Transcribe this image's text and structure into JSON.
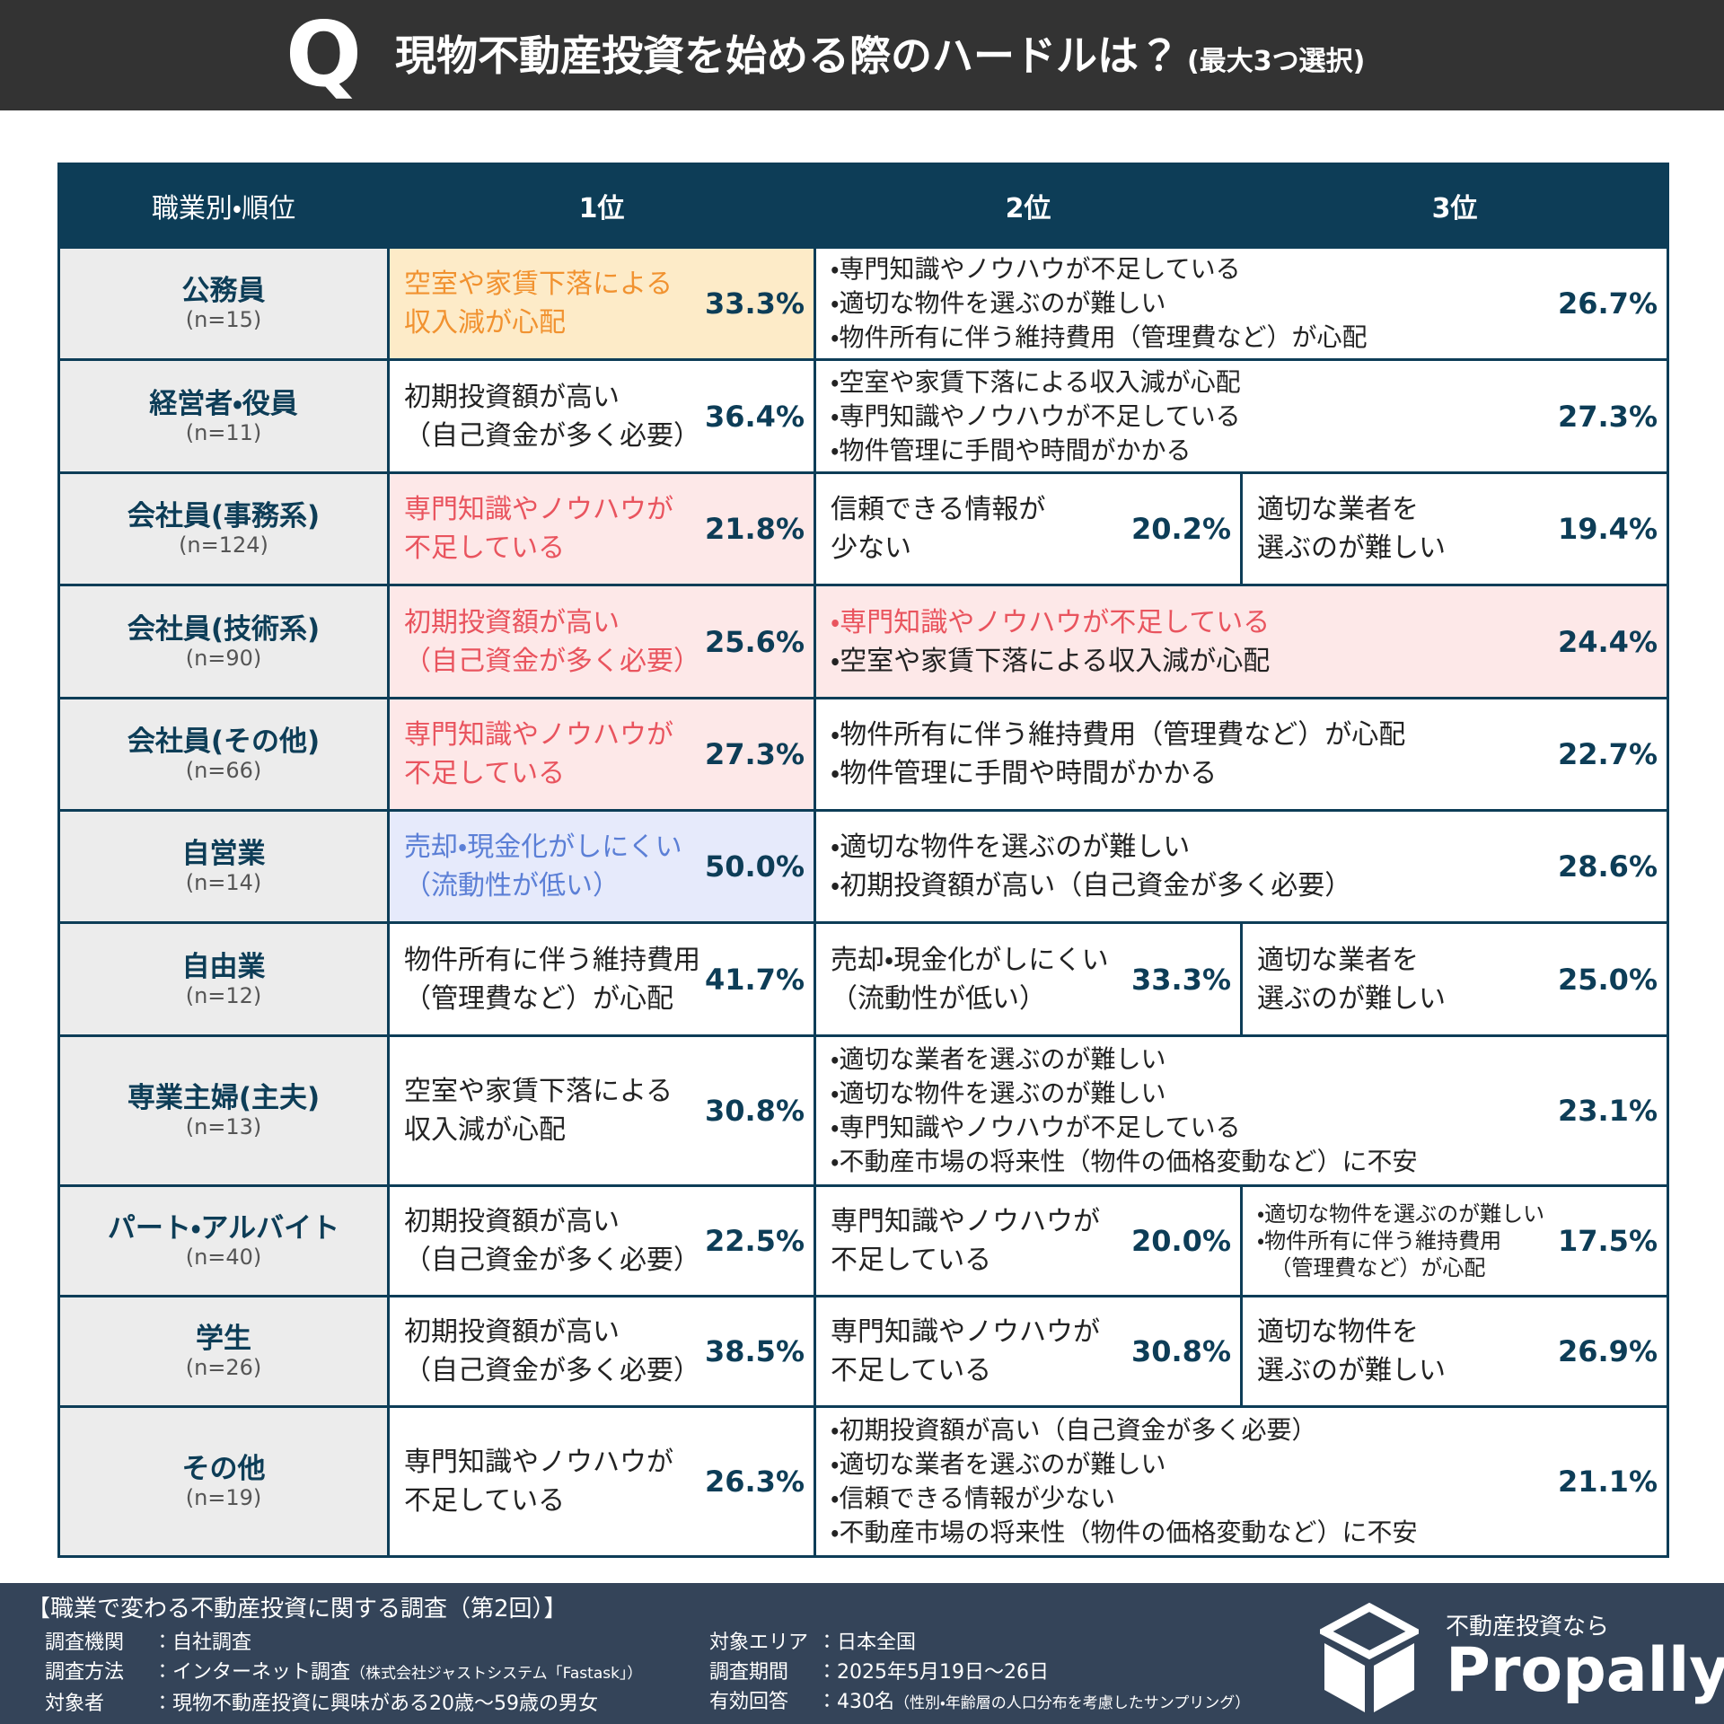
{
  "header": {
    "q": "Q",
    "title": "現物不動産投資を始める際のハードルは？",
    "note": "(最大3つ選択)"
  },
  "table": {
    "columns": [
      "職業別・順位",
      "1位",
      "2位",
      "3位"
    ],
    "rows": [
      {
        "name": "公務員",
        "n": "(n=15)",
        "cells": [
          {
            "lines": [
              "空室や家賃下落による",
              "収入減が心配"
            ],
            "pct": "33.3%",
            "color": "#f19230",
            "background": "#fdebc8"
          },
          {
            "span": 2,
            "lines": [
              "・専門知識やノウハウが不足している",
              "・適切な物件を選ぶのが難しい",
              "・物件所有に伴う維持費用（管理費など）が心配"
            ],
            "pct": "26.7%"
          }
        ]
      },
      {
        "name": "経営者・役員",
        "n": "(n=11)",
        "cells": [
          {
            "lines": [
              "初期投資額が高い",
              "（自己資金が多く必要）"
            ],
            "pct": "36.4%"
          },
          {
            "span": 2,
            "lines": [
              "・空室や家賃下落による収入減が心配",
              "・専門知識やノウハウが不足している",
              "・物件管理に手間や時間がかかる"
            ],
            "pct": "27.3%"
          }
        ]
      },
      {
        "name": "会社員(事務系)",
        "n": "(n=124)",
        "cells": [
          {
            "lines": [
              "専門知識やノウハウが",
              "不足している"
            ],
            "pct": "21.8%",
            "color": "#e9545e",
            "background": "#fde8e8"
          },
          {
            "lines": [
              "信頼できる情報が",
              "少ない"
            ],
            "pct": "20.2%"
          },
          {
            "lines": [
              "適切な業者を",
              "選ぶのが難しい"
            ],
            "pct": "19.4%"
          }
        ]
      },
      {
        "name": "会社員(技術系)",
        "n": "(n=90)",
        "cells": [
          {
            "lines": [
              "初期投資額が高い",
              "（自己資金が多く必要）"
            ],
            "pct": "25.6%",
            "color": "#e9545e",
            "background": "#fde8e8"
          },
          {
            "span": 2,
            "lines": [
              {
                "text": "・専門知識やノウハウが不足している",
                "color": "#e9545e"
              },
              "・空室や家賃下落による収入減が心配"
            ],
            "pct": "24.4%",
            "background": "#fde8e8"
          }
        ]
      },
      {
        "name": "会社員(その他)",
        "n": "(n=66)",
        "cells": [
          {
            "lines": [
              "専門知識やノウハウが",
              "不足している"
            ],
            "pct": "27.3%",
            "color": "#e9545e",
            "background": "#fde8e8"
          },
          {
            "span": 2,
            "lines": [
              "・物件所有に伴う維持費用（管理費など）が心配",
              "・物件管理に手間や時間がかかる"
            ],
            "pct": "22.7%"
          }
        ]
      },
      {
        "name": "自営業",
        "n": "(n=14)",
        "cells": [
          {
            "lines": [
              "売却・現金化がしにくい",
              "（流動性が低い）"
            ],
            "pct": "50.0%",
            "color": "#5b7fd6",
            "background": "#e6eafb"
          },
          {
            "span": 2,
            "lines": [
              "・適切な物件を選ぶのが難しい",
              "・初期投資額が高い（自己資金が多く必要）"
            ],
            "pct": "28.6%"
          }
        ]
      },
      {
        "name": "自由業",
        "n": "(n=12)",
        "cells": [
          {
            "lines": [
              "物件所有に伴う維持費用",
              "（管理費など）が心配"
            ],
            "pct": "41.7%"
          },
          {
            "lines": [
              "売却・現金化がしにくい",
              "（流動性が低い）"
            ],
            "pct": "33.3%"
          },
          {
            "lines": [
              "適切な業者を",
              "選ぶのが難しい"
            ],
            "pct": "25.0%"
          }
        ]
      },
      {
        "name": "専業主婦(主夫)",
        "n": "(n=13)",
        "cells": [
          {
            "lines": [
              "空室や家賃下落による",
              "収入減が心配"
            ],
            "pct": "30.8%"
          },
          {
            "span": 2,
            "lines": [
              "・適切な業者を選ぶのが難しい",
              "・適切な物件を選ぶのが難しい",
              "・専門知識やノウハウが不足している",
              "・不動産市場の将来性（物件の価格変動など）に不安"
            ],
            "pct": "23.1%"
          }
        ]
      },
      {
        "name": "パート・アルバイト",
        "n": "(n=40)",
        "cells": [
          {
            "lines": [
              "初期投資額が高い",
              "（自己資金が多く必要）"
            ],
            "pct": "22.5%"
          },
          {
            "lines": [
              "専門知識やノウハウが",
              "不足している"
            ],
            "pct": "20.0%"
          },
          {
            "lines": [
              "・適切な物件を選ぶのが難しい",
              "・物件所有に伴う維持費用",
              "（管理費など）が心配"
            ],
            "pct": "17.5%"
          }
        ]
      },
      {
        "name": "学生",
        "n": "(n=26)",
        "cells": [
          {
            "lines": [
              "初期投資額が高い",
              "（自己資金が多く必要）"
            ],
            "pct": "38.5%"
          },
          {
            "lines": [
              "専門知識やノウハウが",
              "不足している"
            ],
            "pct": "30.8%"
          },
          {
            "lines": [
              "適切な物件を",
              "選ぶのが難しい"
            ],
            "pct": "26.9%"
          }
        ]
      },
      {
        "name": "その他",
        "n": "(n=19)",
        "cells": [
          {
            "lines": [
              "専門知識やノウハウが",
              "不足している"
            ],
            "pct": "26.3%"
          },
          {
            "span": 2,
            "lines": [
              "・初期投資額が高い（自己資金が多く必要）",
              "・適切な業者を選ぶのが難しい",
              "・信頼できる情報が少ない",
              "・不動産市場の将来性（物件の価格変動など）に不安"
            ],
            "pct": "21.1%"
          }
        ]
      }
    ]
  },
  "footer": {
    "title": "【職業で変わる不動産投資に関する調査（第2回）】",
    "left": [
      {
        "label": "調査機関",
        "value": "：自社調査"
      },
      {
        "label": "調査方法",
        "value": "：インターネット調査",
        "note": "（株式会社ジャストシステム「Fastask」）"
      },
      {
        "label": "対象者",
        "value": "：現物不動産投資に興味がある20歳〜59歳の男女"
      }
    ],
    "right": [
      {
        "label": "対象エリア",
        "value": "：日本全国"
      },
      {
        "label": "調査期間",
        "value": "：2025年5月19日〜26日"
      },
      {
        "label": "有効回答",
        "value": "：430名",
        "note": "（性別・年齢層の人口分布を考慮したサンプリング）"
      }
    ],
    "logo_tagline": "不動産投資なら",
    "logo_name": "Propally"
  }
}
